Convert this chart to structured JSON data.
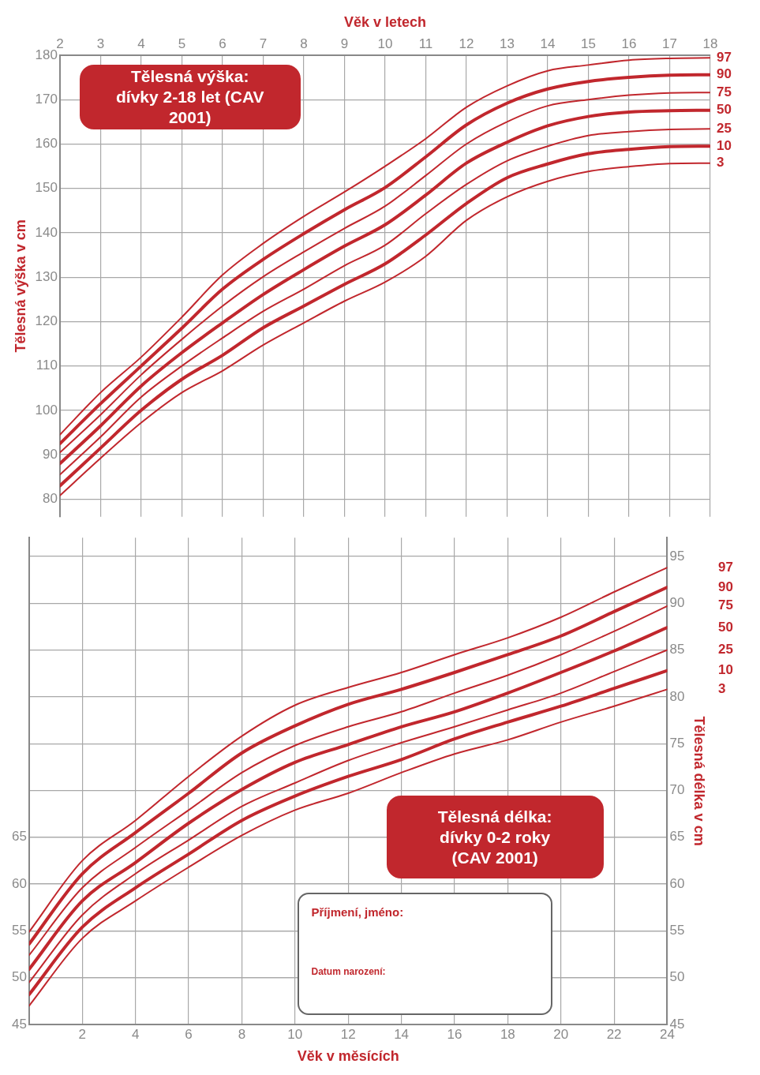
{
  "chart_data": [
    {
      "type": "line",
      "title": "Tělesná výška: dívky 2-18 let (CAV 2001)",
      "xlabel": "Věk v letech",
      "ylabel": "Tělesná výška v cm",
      "x": [
        2,
        3,
        4,
        5,
        6,
        7,
        8,
        9,
        10,
        11,
        12,
        13,
        14,
        15,
        16,
        17,
        18
      ],
      "xlim": [
        2,
        18
      ],
      "xticks": [
        2,
        3,
        4,
        5,
        6,
        7,
        8,
        9,
        10,
        11,
        12,
        13,
        14,
        15,
        16,
        17,
        18
      ],
      "ylim": [
        76,
        180
      ],
      "yticks": [
        80,
        90,
        100,
        110,
        120,
        130,
        140,
        150,
        160,
        170,
        180
      ],
      "grid": true,
      "legend": false,
      "marker": "none",
      "line_style": "solid",
      "series": [
        {
          "name": "97",
          "color": "#c1272d",
          "values": [
            94.5,
            104,
            112,
            121,
            130.5,
            137.6,
            143.7,
            149.2,
            155,
            161.2,
            168.3,
            173.1,
            176.5,
            177.8,
            178.9,
            179.3,
            179.4
          ]
        },
        {
          "name": "90",
          "color": "#c1272d",
          "values": [
            92.5,
            101.5,
            110,
            118.5,
            127.3,
            134,
            139.8,
            145.2,
            150.2,
            157.1,
            164.3,
            169.2,
            172.4,
            174.1,
            175,
            175.5,
            175.6
          ]
        },
        {
          "name": "75",
          "color": "#c1272d",
          "values": [
            90.5,
            99,
            108,
            116,
            123.5,
            130.1,
            135.7,
            141,
            146,
            152.9,
            160,
            165,
            168.6,
            170,
            171,
            171.5,
            171.6
          ]
        },
        {
          "name": "50",
          "color": "#c1272d",
          "values": [
            88,
            96.5,
            105.5,
            113,
            119.7,
            126.1,
            131.7,
            137,
            141.8,
            148.5,
            155.7,
            160.4,
            164.1,
            166.2,
            167.2,
            167.5,
            167.6
          ]
        },
        {
          "name": "25",
          "color": "#c1272d",
          "values": [
            85.5,
            94,
            103,
            110,
            116.3,
            122.3,
            127.3,
            132.6,
            137.2,
            144.3,
            150.9,
            156.2,
            159.5,
            161.9,
            162.8,
            163.3,
            163.4
          ]
        },
        {
          "name": "10",
          "color": "#c1272d",
          "values": [
            83,
            91.5,
            100,
            107,
            112.4,
            118.6,
            123.5,
            128.4,
            133,
            139.5,
            146.6,
            152.4,
            155.5,
            157.8,
            158.8,
            159.4,
            159.5
          ]
        },
        {
          "name": "3",
          "color": "#c1272d",
          "values": [
            80.8,
            89.2,
            97.2,
            104,
            108.9,
            114.7,
            119.7,
            124.6,
            128.9,
            134.7,
            142.8,
            148.1,
            151.6,
            153.8,
            154.9,
            155.6,
            155.7
          ]
        }
      ]
    },
    {
      "type": "line",
      "title": "Tělesná délka: dívky 0-2 roky (CAV 2001)",
      "xlabel": "Věk v měsících",
      "y2label": "Tělesná délka v cm",
      "x": [
        0,
        2,
        4,
        6,
        8,
        10,
        12,
        14,
        16,
        18,
        20,
        22,
        24
      ],
      "xlim": [
        0,
        24
      ],
      "xticks": [
        2,
        4,
        6,
        8,
        10,
        12,
        14,
        16,
        18,
        20,
        22,
        24
      ],
      "ylim": [
        45,
        97
      ],
      "yticks": [
        45,
        50,
        55,
        60,
        65
      ],
      "y2lim": [
        45,
        97
      ],
      "y2ticks": [
        45,
        50,
        55,
        60,
        65,
        70,
        75,
        80,
        85,
        90,
        95
      ],
      "grid": true,
      "legend": false,
      "marker": "none",
      "line_style": "solid",
      "annotations": [
        "Příjmení, jméno:",
        "Datum narození:"
      ],
      "series": [
        {
          "name": "97",
          "color": "#c1272d",
          "values": [
            54.9,
            62.5,
            66.8,
            71.5,
            75.8,
            79.1,
            81,
            82.6,
            84.5,
            86.3,
            88.5,
            91.2,
            93.8
          ]
        },
        {
          "name": "90",
          "color": "#c1272d",
          "values": [
            53.6,
            61.1,
            65.5,
            69.7,
            74,
            76.9,
            79.2,
            80.8,
            82.6,
            84.5,
            86.5,
            89.1,
            91.7
          ]
        },
        {
          "name": "75",
          "color": "#c1272d",
          "values": [
            52.4,
            59.6,
            63.9,
            67.9,
            71.9,
            74.8,
            76.8,
            78.4,
            80.4,
            82.3,
            84.5,
            87,
            89.7
          ]
        },
        {
          "name": "50",
          "color": "#c1272d",
          "values": [
            50.9,
            58.2,
            62.3,
            66.5,
            70.1,
            73,
            74.9,
            76.8,
            78.4,
            80.4,
            82.6,
            84.9,
            87.4
          ]
        },
        {
          "name": "25",
          "color": "#c1272d",
          "values": [
            49.5,
            56.7,
            61.1,
            64.7,
            68.3,
            70.8,
            73.2,
            75.1,
            76.8,
            78.6,
            80.4,
            82.7,
            85
          ]
        },
        {
          "name": "10",
          "color": "#c1272d",
          "values": [
            48.2,
            55.4,
            59.6,
            63.2,
            66.8,
            69.4,
            71.5,
            73.3,
            75.5,
            77.3,
            79,
            80.9,
            82.8
          ]
        },
        {
          "name": "3",
          "color": "#c1272d",
          "values": [
            47,
            54.2,
            58.2,
            61.8,
            65.2,
            67.9,
            69.7,
            71.9,
            73.9,
            75.4,
            77.3,
            79,
            80.8
          ]
        }
      ]
    }
  ]
}
